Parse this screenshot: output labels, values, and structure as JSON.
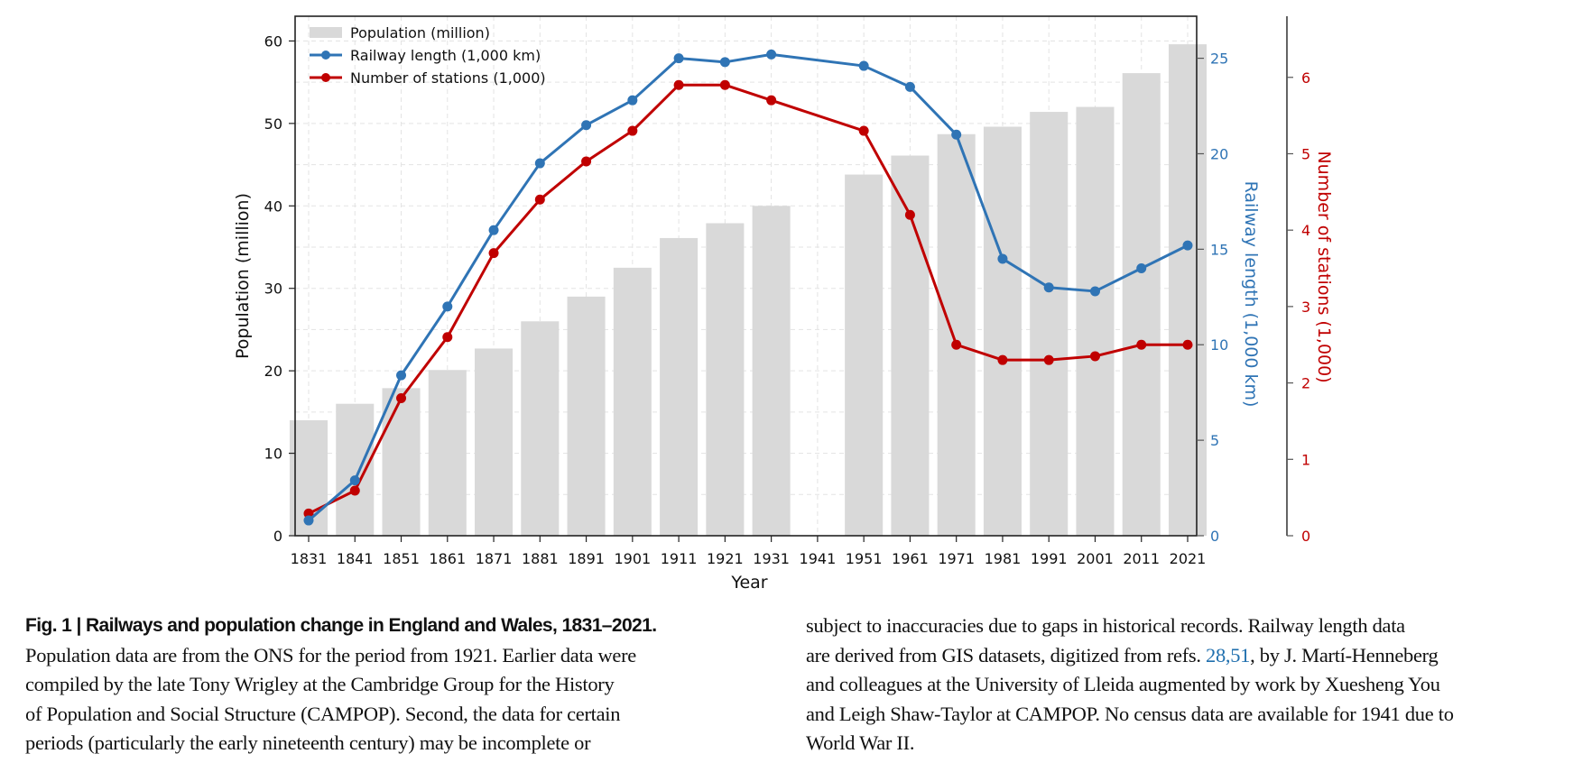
{
  "chart_data": {
    "type": "bar",
    "title": "Railways and population change in England and Wales, 1831–2021",
    "xlabel": "Year",
    "ylabel": "Population (million)",
    "y2label": "Railway length (1,000 km)",
    "y3label": "Number of stations (1,000)",
    "categories": [
      "1831",
      "1841",
      "1851",
      "1861",
      "1871",
      "1881",
      "1891",
      "1901",
      "1911",
      "1921",
      "1931",
      "1941",
      "1951",
      "1961",
      "1971",
      "1981",
      "1991",
      "2001",
      "2011",
      "2021"
    ],
    "ylim": [
      0,
      63
    ],
    "y2lim": [
      0,
      27.2
    ],
    "y3lim": [
      0,
      6.8
    ],
    "yticks": [
      0,
      10,
      20,
      30,
      40,
      50,
      60
    ],
    "y2ticks": [
      0,
      5,
      10,
      15,
      20,
      25
    ],
    "y3ticks": [
      0,
      1,
      2,
      3,
      4,
      5,
      6
    ],
    "grid": true,
    "legend_position": "top-left",
    "series": [
      {
        "name": "Population (million)",
        "type": "bar",
        "axis": "left",
        "color": "#d9d9d9",
        "values": [
          14.0,
          16.0,
          17.9,
          20.1,
          22.7,
          26.0,
          29.0,
          32.5,
          36.1,
          37.9,
          40.0,
          null,
          43.8,
          46.1,
          48.7,
          49.6,
          51.4,
          52.0,
          56.1,
          59.6
        ]
      },
      {
        "name": "Railway length (1,000 km)",
        "type": "line",
        "axis": "right-1",
        "color": "#2f74b5",
        "values": [
          0.8,
          2.9,
          8.4,
          12.0,
          16.0,
          19.5,
          21.5,
          22.8,
          25.0,
          24.8,
          25.2,
          null,
          24.6,
          23.5,
          21.0,
          14.5,
          13.0,
          12.8,
          14.0,
          15.2
        ]
      },
      {
        "name": "Number of stations (1,000)",
        "type": "line",
        "axis": "right-2",
        "color": "#c00000",
        "values": [
          0.29,
          0.59,
          1.8,
          2.6,
          3.7,
          4.4,
          4.9,
          5.3,
          5.9,
          5.9,
          5.7,
          null,
          5.3,
          4.2,
          2.5,
          2.3,
          2.3,
          2.35,
          2.5,
          2.5
        ]
      }
    ]
  },
  "caption": {
    "title": "Fig. 1 | Railways and population change in England and Wales, 1831–2021.",
    "left_lines": [
      "Population data are from the ONS for the period from 1921. Earlier data were",
      "compiled by the late Tony Wrigley at the Cambridge Group for the History",
      "of Population and Social Structure (CAMPOP). Second, the data for certain",
      "periods (particularly the early nineteenth century) may be incomplete or"
    ],
    "right_line1": "subject to inaccuracies due to gaps in historical records. Railway length data",
    "right_line2_pre": "are derived from GIS datasets, digitized from refs. ",
    "ref1": "28",
    "ref_sep": ",",
    "ref2": "51",
    "right_line2_post": ", by J. Martí-Henneberg",
    "right_line3": "and colleagues at the University of Lleida augmented by work by Xuesheng You",
    "right_line4": "and Leigh Shaw-Taylor at CAMPOP. No census data are available for 1941 due to",
    "right_line5": "World War II."
  }
}
